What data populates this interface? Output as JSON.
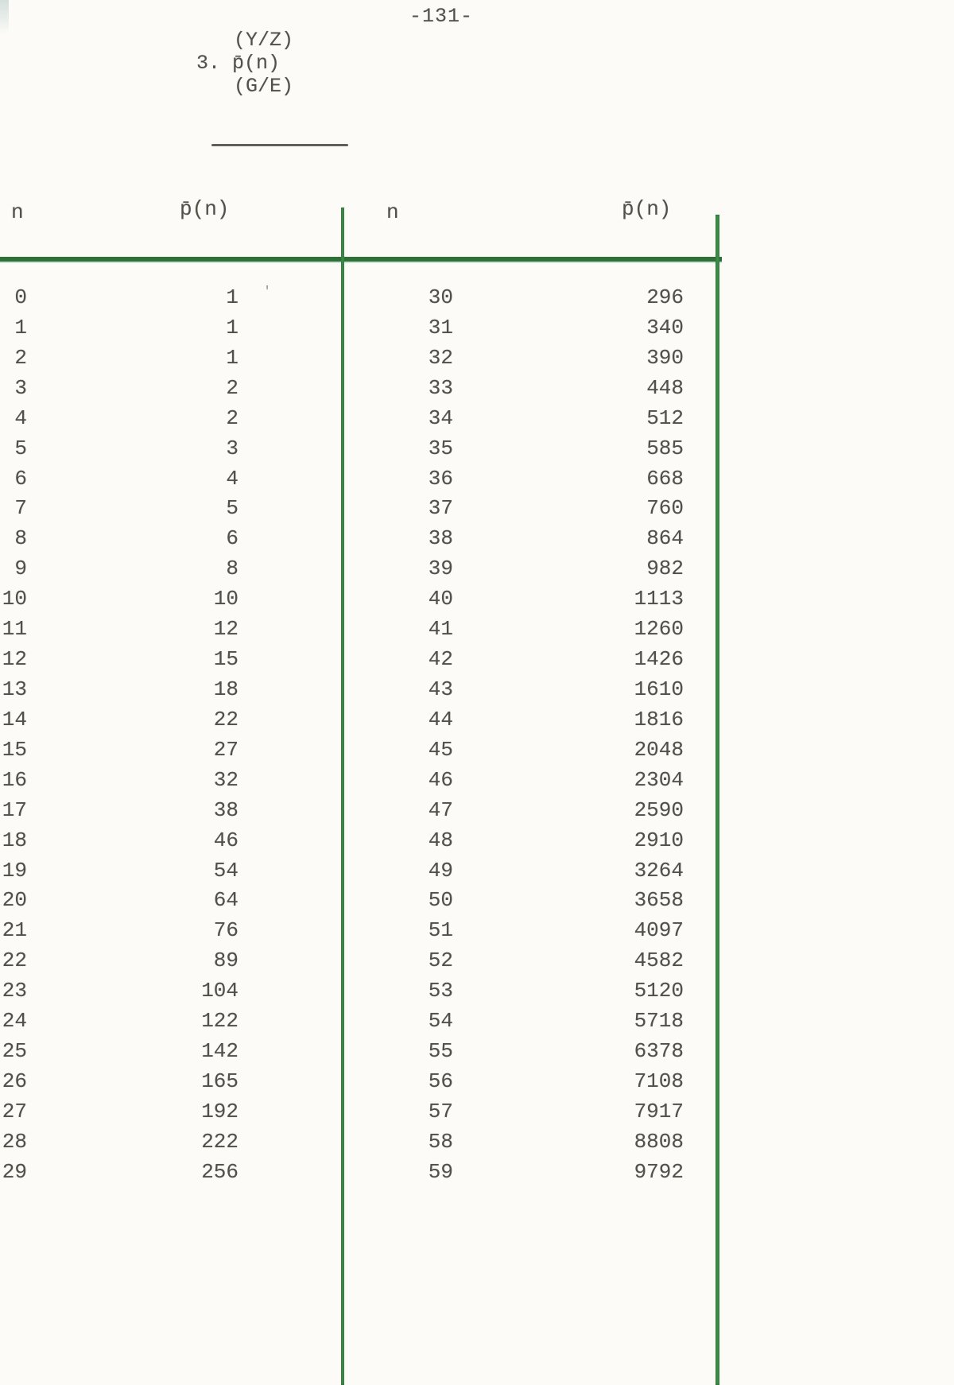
{
  "page_number": "-131-",
  "title": {
    "superscript": "(Y/Z)",
    "main": "3. p̄(n)",
    "subscript": "(G/E)"
  },
  "table": {
    "headers": {
      "left_n": "n",
      "left_p": "p̄(n)",
      "right_n": "n",
      "right_p": "p̄(n)"
    },
    "left": {
      "rows": [
        {
          "n": 0,
          "p": 1
        },
        {
          "n": 1,
          "p": 1
        },
        {
          "n": 2,
          "p": 1
        },
        {
          "n": 3,
          "p": 2
        },
        {
          "n": 4,
          "p": 2
        },
        {
          "n": 5,
          "p": 3
        },
        {
          "n": 6,
          "p": 4
        },
        {
          "n": 7,
          "p": 5
        },
        {
          "n": 8,
          "p": 6
        },
        {
          "n": 9,
          "p": 8
        },
        {
          "n": 10,
          "p": 10
        },
        {
          "n": 11,
          "p": 12
        },
        {
          "n": 12,
          "p": 15
        },
        {
          "n": 13,
          "p": 18
        },
        {
          "n": 14,
          "p": 22
        },
        {
          "n": 15,
          "p": 27
        },
        {
          "n": 16,
          "p": 32
        },
        {
          "n": 17,
          "p": 38
        },
        {
          "n": 18,
          "p": 46
        },
        {
          "n": 19,
          "p": 54
        },
        {
          "n": 20,
          "p": 64
        },
        {
          "n": 21,
          "p": 76
        },
        {
          "n": 22,
          "p": 89
        },
        {
          "n": 23,
          "p": 104
        },
        {
          "n": 24,
          "p": 122
        },
        {
          "n": 25,
          "p": 142
        },
        {
          "n": 26,
          "p": 165
        },
        {
          "n": 27,
          "p": 192
        },
        {
          "n": 28,
          "p": 222
        },
        {
          "n": 29,
          "p": 256
        }
      ]
    },
    "right": {
      "rows": [
        {
          "n": 30,
          "p": 296
        },
        {
          "n": 31,
          "p": 340
        },
        {
          "n": 32,
          "p": 390
        },
        {
          "n": 33,
          "p": 448
        },
        {
          "n": 34,
          "p": 512
        },
        {
          "n": 35,
          "p": 585
        },
        {
          "n": 36,
          "p": 668
        },
        {
          "n": 37,
          "p": 760
        },
        {
          "n": 38,
          "p": 864
        },
        {
          "n": 39,
          "p": 982
        },
        {
          "n": 40,
          "p": 1113
        },
        {
          "n": 41,
          "p": 1260
        },
        {
          "n": 42,
          "p": 1426
        },
        {
          "n": 43,
          "p": 1610
        },
        {
          "n": 44,
          "p": 1816
        },
        {
          "n": 45,
          "p": 2048
        },
        {
          "n": 46,
          "p": 2304
        },
        {
          "n": 47,
          "p": 2590
        },
        {
          "n": 48,
          "p": 2910
        },
        {
          "n": 49,
          "p": 3264
        },
        {
          "n": 50,
          "p": 3658
        },
        {
          "n": 51,
          "p": 4097
        },
        {
          "n": 52,
          "p": 4582
        },
        {
          "n": 53,
          "p": 5120
        },
        {
          "n": 54,
          "p": 5718
        },
        {
          "n": 55,
          "p": 6378
        },
        {
          "n": 56,
          "p": 7108
        },
        {
          "n": 57,
          "p": 7917
        },
        {
          "n": 58,
          "p": 8808
        },
        {
          "n": 59,
          "p": 9792
        }
      ]
    }
  },
  "artifacts": {
    "stray_mark": "'"
  },
  "colors": {
    "paper": "#fcfbf7",
    "ink": "#53504a",
    "line_green": "#3e8c4b",
    "rule_green": "#2d7137"
  }
}
